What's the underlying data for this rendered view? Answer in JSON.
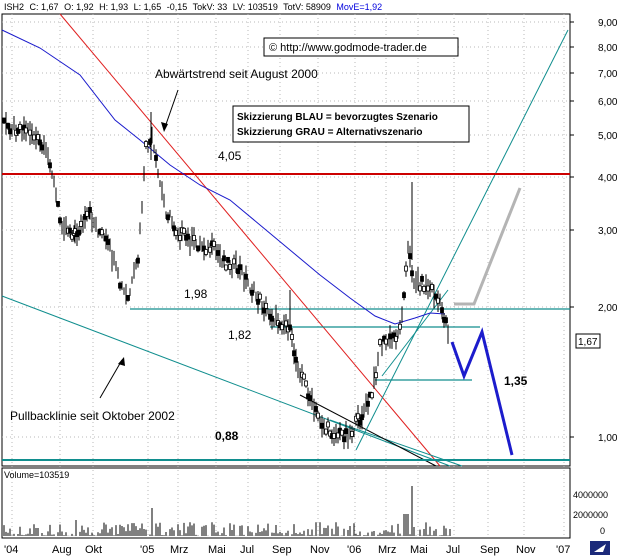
{
  "header": {
    "symbol": "ISH2",
    "close": "C: 1,67",
    "open": "O: 1,92",
    "high": "H: 1,93",
    "low": "L: 1,65",
    "change": "-0,15",
    "tokv": "TokV: 33",
    "lv": "LV: 103519",
    "totv": "TotV: 58909",
    "move": "MovE=1,92"
  },
  "annotations": {
    "copyright": "© http://www.godmode-trader.de",
    "downtrend": "Abwärtstrend seit August 2000",
    "pullback": "Pullbacklinie seit Oktober 2002",
    "legend_blue": "Skizzierung BLAU = bevorzugtes Szenario",
    "legend_gray": "Skizzierung GRAU = Alternativszenario",
    "level_405": "4,05",
    "level_198": "1,98",
    "level_182": "1,82",
    "level_135": "1,35",
    "level_088": "0,88",
    "last_price_tag": "1,67"
  },
  "volume_panel": {
    "label": "Volume=103519",
    "ticks": [
      "4000000",
      "2000000",
      "0"
    ]
  },
  "colors": {
    "grid": "#b8b8b8",
    "candle": "#000000",
    "moving_average": "#1a1acc",
    "downtrend": "#e02020",
    "resistance": "#cc0000",
    "support": "#108e8e",
    "blue_scenario": "#1c1ccc",
    "gray_scenario": "#b4b4b4",
    "header_blue": "#0000dd"
  },
  "chart_data": {
    "type": "candlestick",
    "y_scale": "log",
    "ylim": [
      0.8,
      9.5
    ],
    "y_ticks": [
      "9,00",
      "8,00",
      "7,00",
      "6,00",
      "5,00",
      "4,00",
      "3,00",
      "2,00",
      "1,00"
    ],
    "x_ticks": [
      "'04",
      "Aug",
      "Okt",
      "'05",
      "Mrz",
      "Mai",
      "Jul",
      "Sep",
      "Nov",
      "'06",
      "Mrz",
      "Mai",
      "Jul",
      "Sep",
      "Nov",
      "'07"
    ],
    "last_price": 1.67,
    "horizontal_levels": [
      4.05,
      1.98,
      1.82,
      1.35,
      0.88
    ],
    "series": [
      {
        "name": "MovE",
        "values": [
          4.8,
          4.85,
          4.7,
          4.3,
          3.9,
          3.55,
          3.3,
          3.15,
          3.05,
          2.8,
          2.45,
          2.2,
          1.98,
          1.92
        ]
      }
    ]
  }
}
